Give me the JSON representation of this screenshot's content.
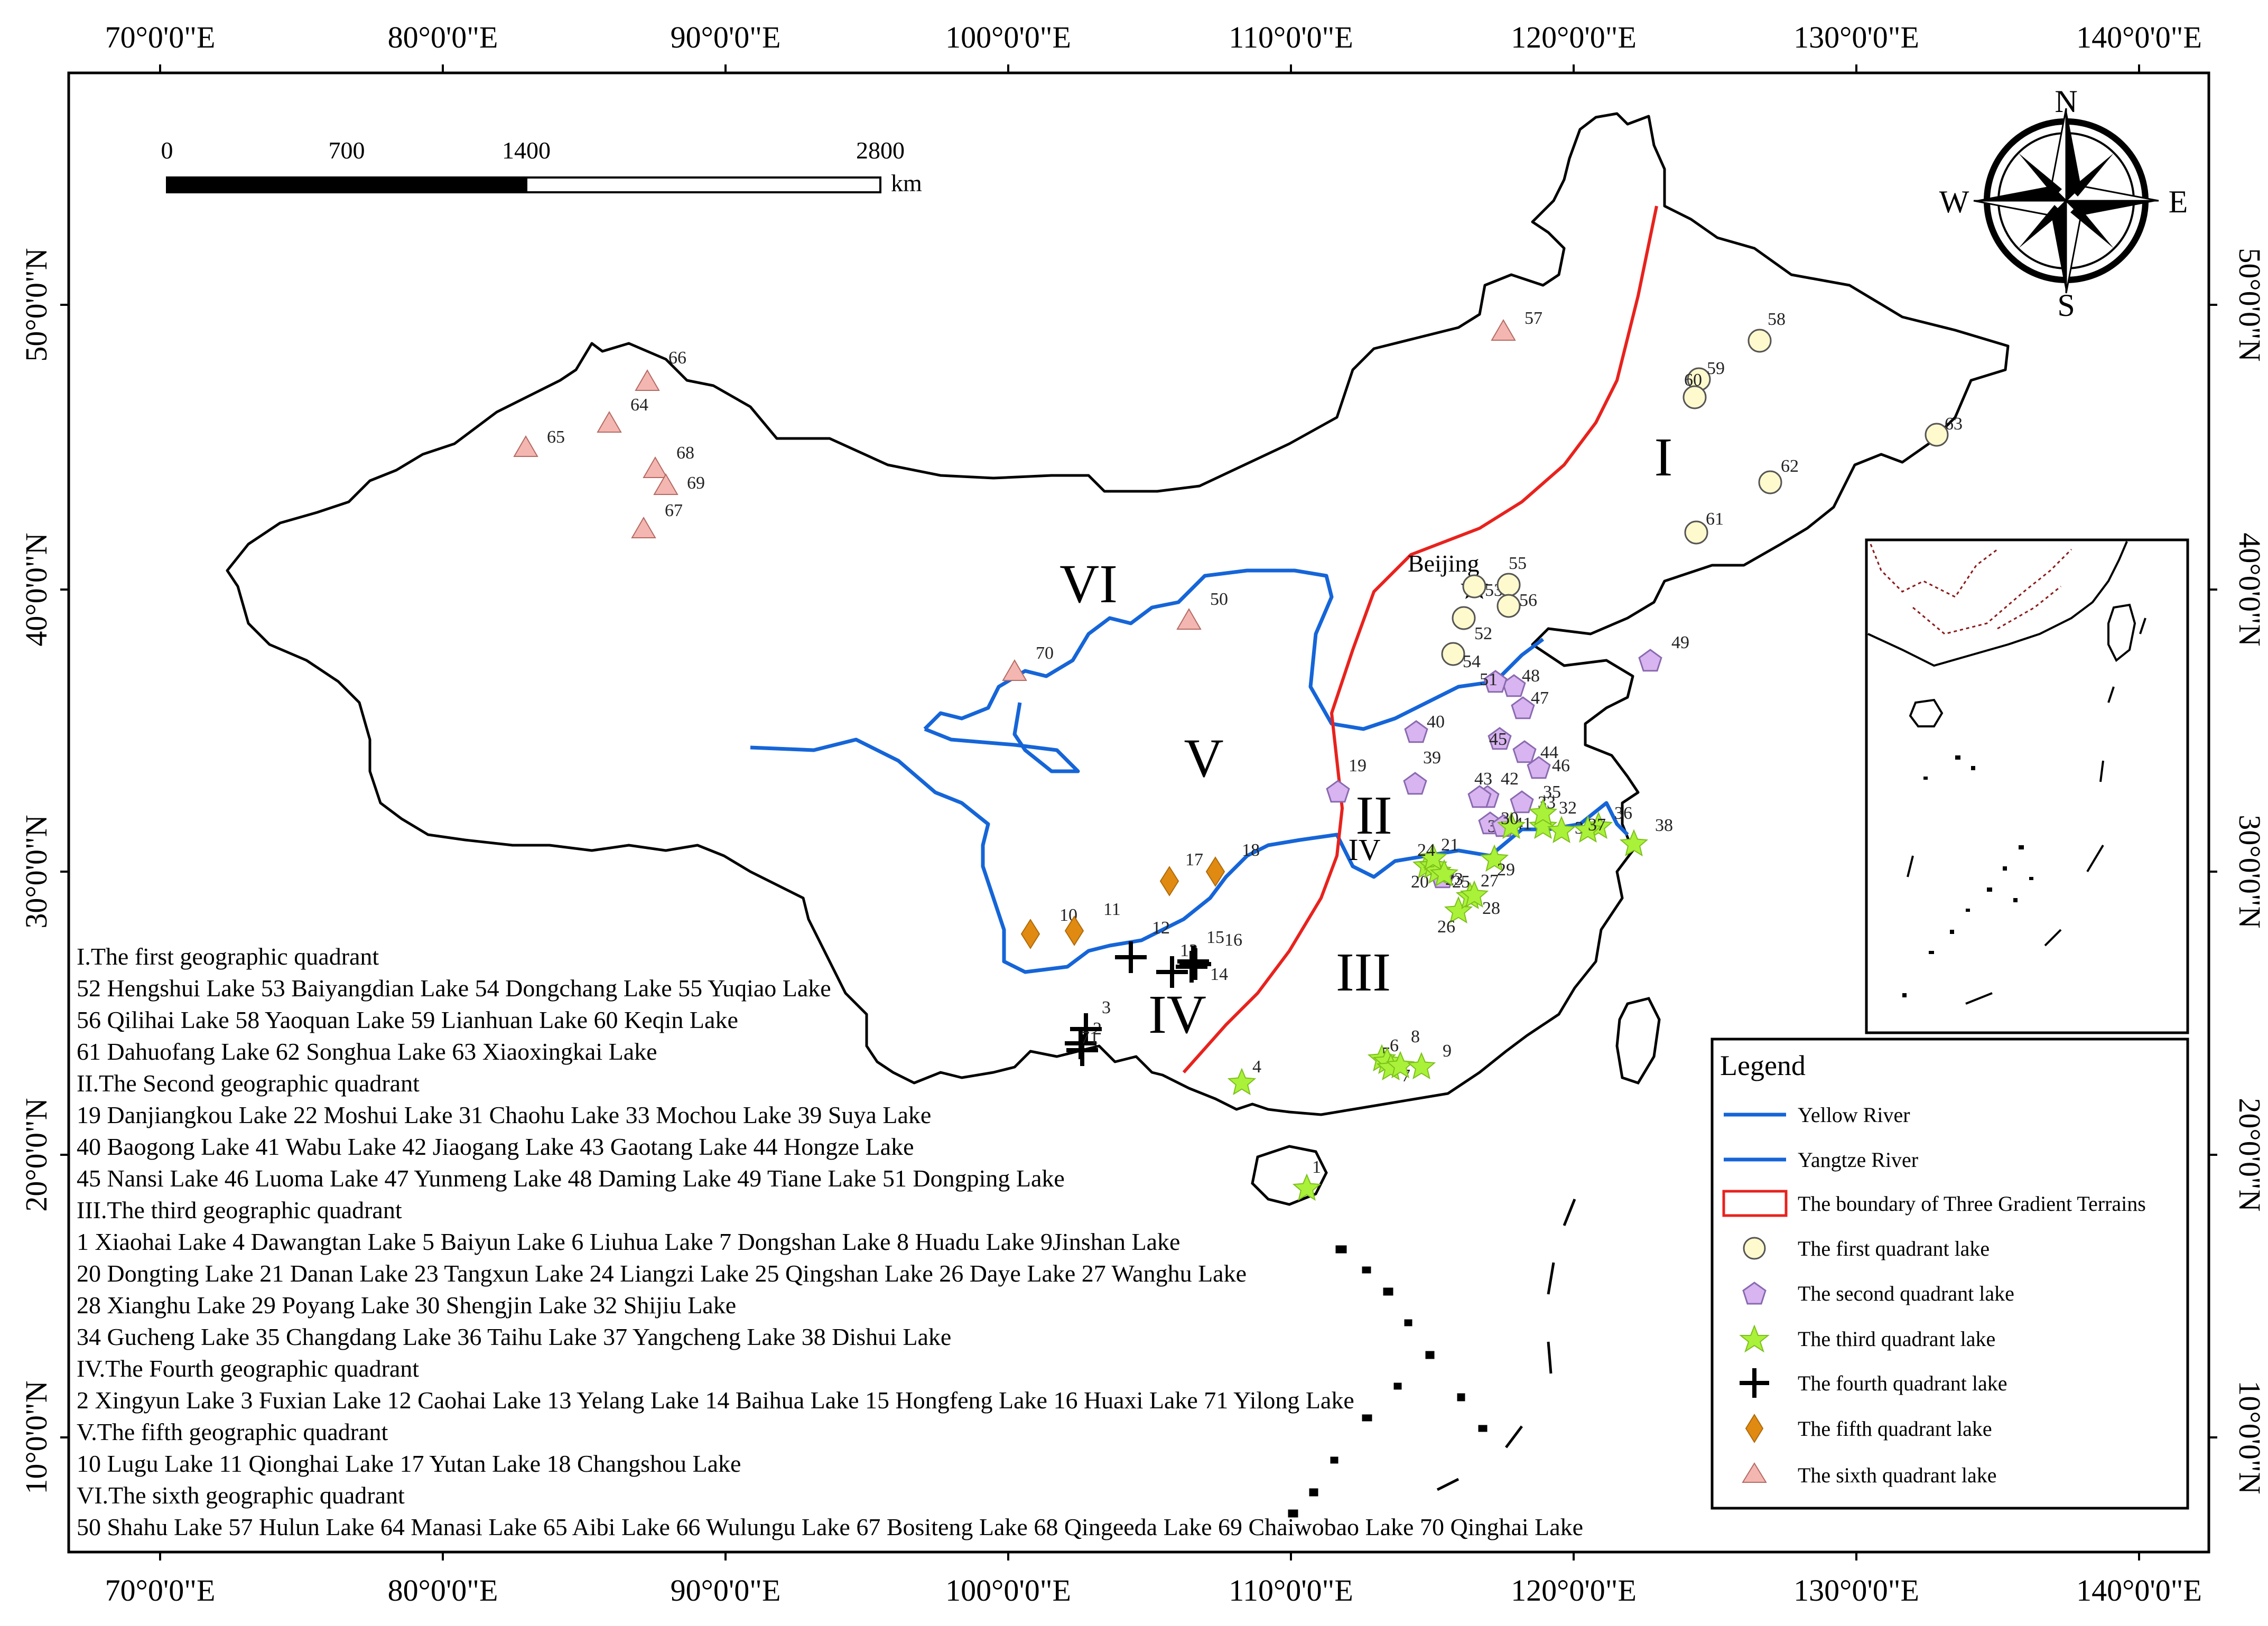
{
  "map": {
    "lon_ticks": [
      "70°0'0\"E",
      "80°0'0\"E",
      "90°0'0\"E",
      "100°0'0\"E",
      "110°0'0\"E",
      "120°0'0\"E",
      "130°0'0\"E",
      "140°0'0\"E"
    ],
    "lat_ticks": [
      "50°0'0\"N",
      "40°0'0\"N",
      "30°0'0\"N",
      "20°0'0\"N",
      "10°0'0\"N"
    ],
    "scale_bar": {
      "labels": [
        "0",
        "700",
        "1400",
        "2800"
      ],
      "unit": "km"
    },
    "compass": {
      "n": "N",
      "s": "S",
      "e": "E",
      "w": "W"
    },
    "capital_label": "Beijing",
    "region_labels": {
      "I": "I",
      "II": "II",
      "III": "III",
      "IV": "IV",
      "IV_small": "IV",
      "V": "V",
      "VI": "VI"
    },
    "lakes": {
      "q1": [
        "52",
        "53",
        "54",
        "55",
        "56",
        "58",
        "59",
        "60",
        "61",
        "62",
        "63"
      ],
      "q2": [
        "19",
        "22",
        "31",
        "33",
        "39",
        "40",
        "41",
        "42",
        "43",
        "44",
        "45",
        "46",
        "47",
        "48",
        "49",
        "51"
      ],
      "q3": [
        "1",
        "4",
        "5",
        "6",
        "7",
        "8",
        "9",
        "20",
        "21",
        "23",
        "24",
        "25",
        "26",
        "27",
        "28",
        "29",
        "30",
        "32",
        "34",
        "35",
        "36",
        "37",
        "38"
      ],
      "q4": [
        "2",
        "3",
        "12",
        "13",
        "14",
        "15",
        "16",
        "71"
      ],
      "q5": [
        "10",
        "11",
        "17",
        "18"
      ],
      "q6": [
        "50",
        "57",
        "64",
        "65",
        "66",
        "67",
        "68",
        "69",
        "70"
      ]
    },
    "notes": [
      "I.The first geographic quadrant",
      "52 Hengshui Lake 53 Baiyangdian Lake 54 Dongchang Lake 55 Yuqiao Lake",
      "56 Qilihai Lake 58 Yaoquan Lake 59 Lianhuan Lake 60 Keqin Lake",
      "61 Dahuofang Lake 62 Songhua Lake 63 Xiaoxingkai Lake",
      "II.The Second geographic quadrant",
      "19 Danjiangkou Lake 22 Moshui Lake 31 Chaohu Lake 33 Mochou Lake 39 Suya Lake",
      "40 Baogong Lake 41 Wabu Lake 42 Jiaogang Lake 43 Gaotang Lake 44 Hongze Lake",
      "45 Nansi Lake 46 Luoma Lake 47 Yunmeng Lake 48 Daming Lake 49 Tiane Lake 51 Dongping Lake",
      "III.The third geographic quadrant",
      "1 Xiaohai Lake 4 Dawangtan Lake 5 Baiyun Lake 6 Liuhua Lake 7 Dongshan Lake 8 Huadu Lake 9Jinshan Lake",
      "20 Dongting Lake 21 Danan Lake  23 Tangxun Lake 24 Liangzi Lake 25 Qingshan Lake 26 Daye Lake 27 Wanghu Lake",
      "28 Xianghu Lake 29 Poyang Lake 30 Shengjin Lake 32 Shijiu Lake",
      "34 Gucheng Lake 35 Changdang Lake 36 Taihu Lake 37 Yangcheng Lake 38 Dishui Lake",
      "IV.The Fourth geographic quadrant",
      "2 Xingyun Lake 3 Fuxian Lake 12 Caohai Lake 13 Yelang Lake 14 Baihua Lake 15 Hongfeng Lake 16 Huaxi Lake 71 Yilong Lake",
      "V.The fifth geographic quadrant",
      "10 Lugu Lake 11 Qionghai Lake  17 Yutan Lake 18 Changshou Lake",
      "VI.The sixth geographic quadrant",
      "50 Shahu Lake 57 Hulun Lake 64 Manasi Lake 65 Aibi Lake 66 Wulungu Lake 67 Bositeng Lake 68 Qingeeda Lake 69 Chaiwobao Lake 70 Qinghai Lake"
    ],
    "legend": {
      "title": "Legend",
      "items": [
        "Yellow River",
        "Yangtze River",
        "The boundary of Three Gradient Terrains",
        "The first quadrant lake",
        "The second quadrant lake",
        "The third quadrant lake",
        "The fourth quadrant lake",
        "The fifth quadrant lake",
        "The sixth quadrant lake"
      ]
    },
    "colors": {
      "river": "#1565d8",
      "boundary": "#e8221d",
      "q1": "#fffacd",
      "q2": "#d8b4f0",
      "q3": "#aaf23a",
      "q4": "#000000",
      "q5": "#e08a12",
      "q6": "#f4b6b0",
      "inset_border": "#8b1a1a"
    }
  }
}
